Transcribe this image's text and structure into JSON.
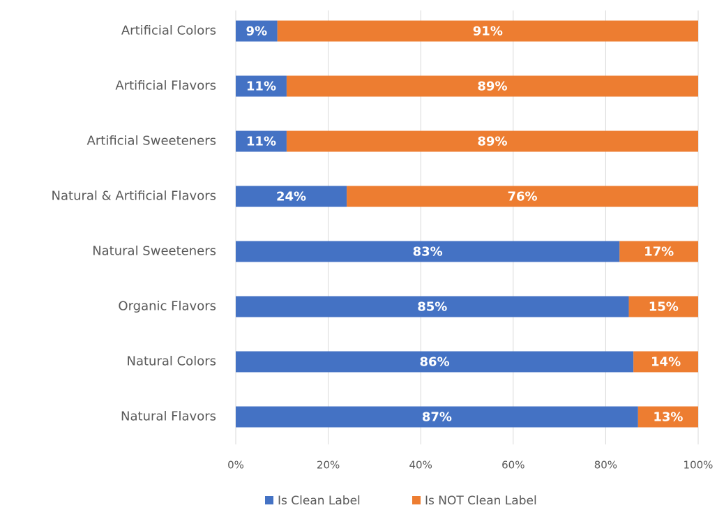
{
  "chart_data": {
    "type": "bar",
    "orientation": "horizontal",
    "stacked": true,
    "categories": [
      "Artificial Colors",
      "Artificial Flavors",
      "Artificial Sweeteners",
      "Natural & Artificial Flavors",
      "Natural Sweeteners",
      "Organic Flavors",
      "Natural Colors",
      "Natural Flavors"
    ],
    "series": [
      {
        "name": "Is Clean Label",
        "color": "#4472c4",
        "values": [
          9,
          11,
          11,
          24,
          83,
          85,
          86,
          87
        ],
        "value_labels": [
          "9%",
          "11%",
          "11%",
          "24%",
          "83%",
          "85%",
          "86%",
          "87%"
        ]
      },
      {
        "name": "Is NOT Clean Label",
        "color": "#ed7d31",
        "values": [
          91,
          89,
          89,
          76,
          17,
          15,
          14,
          13
        ],
        "value_labels": [
          "91%",
          "89%",
          "89%",
          "76%",
          "17%",
          "15%",
          "14%",
          "13%"
        ]
      }
    ],
    "xlim": [
      0,
      100
    ],
    "xticks": [
      {
        "value": 0,
        "label": "0%"
      },
      {
        "value": 20,
        "label": "20%"
      },
      {
        "value": 40,
        "label": "40%"
      },
      {
        "value": 60,
        "label": "60%"
      },
      {
        "value": 80,
        "label": "80%"
      },
      {
        "value": 100,
        "label": "100%"
      }
    ],
    "grid": true,
    "legend": "bottom"
  }
}
